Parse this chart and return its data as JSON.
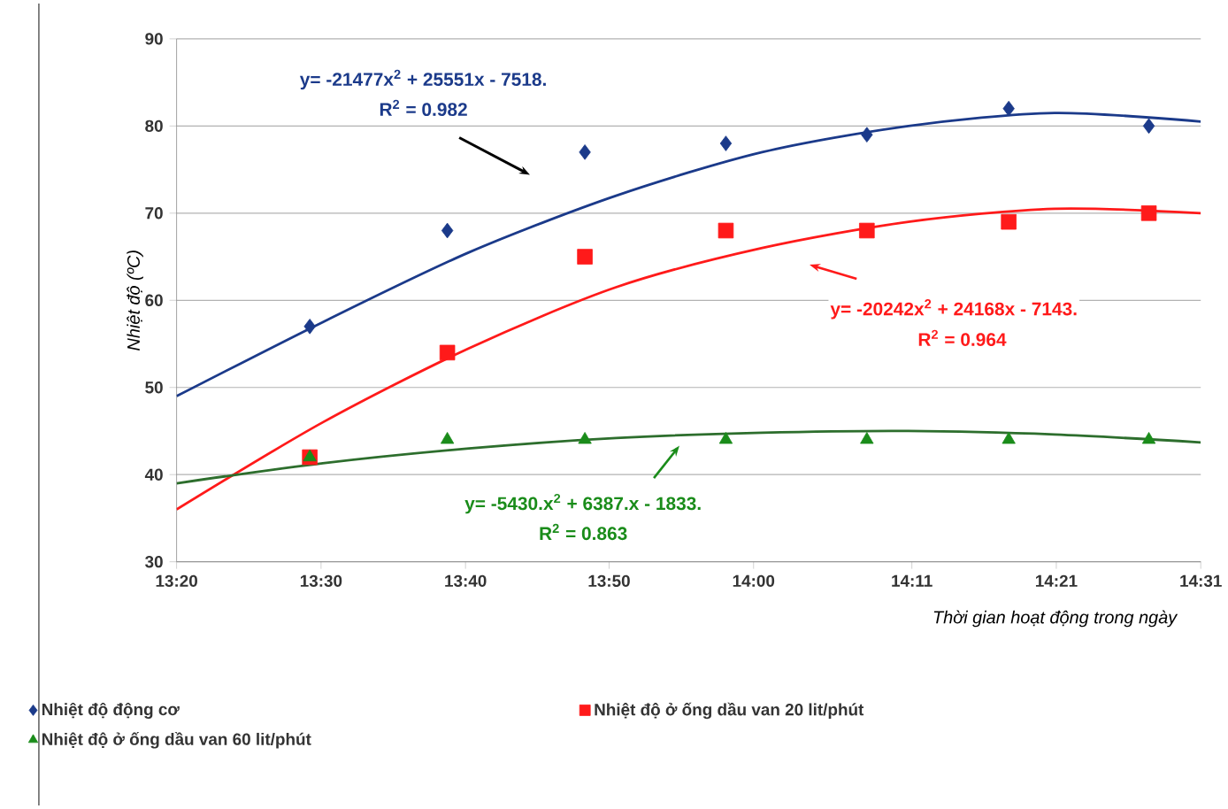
{
  "chart_data": {
    "type": "scatter",
    "xlabel": "Thời gian hoạt động trong ngày",
    "ylabel": "Nhiệt độ (ºC)",
    "x": [
      13.487,
      13.646,
      13.805,
      13.968,
      14.131,
      14.295,
      14.457
    ],
    "series": [
      {
        "name": "Nhiệt độ động cơ",
        "color": "#1b3a8a",
        "marker": "diamond",
        "values": [
          57,
          68,
          77,
          78,
          79,
          82,
          80
        ]
      },
      {
        "name": "Nhiệt độ ở ống dầu van 20 lit/phút",
        "color": "#ff1a1a",
        "marker": "square",
        "values": [
          42,
          54,
          65,
          68,
          68,
          69,
          70
        ]
      },
      {
        "name": "Nhiệt độ ở ống dầu van 60 lit/phút",
        "color": "#1a8c1a",
        "marker": "triangle",
        "values": [
          42,
          44,
          44,
          44,
          44,
          44,
          44
        ]
      },
      {
        "type": "line",
        "color": "#1b3a8a",
        "x": [
          13.333,
          13.502,
          13.671,
          13.841,
          14.01,
          14.179,
          14.348,
          14.517
        ],
        "values": [
          49,
          57.5,
          65.5,
          72,
          77,
          80,
          81.5,
          80.5
        ]
      },
      {
        "type": "line",
        "color": "#ff1a1a",
        "x": [
          13.333,
          13.502,
          13.671,
          13.841,
          14.01,
          14.179,
          14.348,
          14.517
        ],
        "values": [
          36,
          46,
          54.5,
          61.5,
          66,
          69,
          70.5,
          70
        ]
      },
      {
        "type": "line",
        "color": "#2d6e2d",
        "x": [
          13.333,
          13.502,
          13.671,
          13.841,
          14.01,
          14.179,
          14.348,
          14.517
        ],
        "values": [
          39,
          41.3,
          43,
          44.2,
          44.8,
          45,
          44.6,
          43.7
        ]
      }
    ],
    "xlim": [
      13.333,
      14.517
    ],
    "xticks": [
      {
        "value": 13.333,
        "label": "13:20"
      },
      {
        "value": 13.5,
        "label": "13:30"
      },
      {
        "value": 13.667,
        "label": "13:40"
      },
      {
        "value": 13.833,
        "label": "13:50"
      },
      {
        "value": 14.0,
        "label": "14:00"
      },
      {
        "value": 14.183,
        "label": "14:11"
      },
      {
        "value": 14.35,
        "label": "14:21"
      },
      {
        "value": 14.517,
        "label": "14:31"
      }
    ],
    "ylim": [
      30,
      90
    ],
    "yticks": [
      30,
      40,
      50,
      60,
      70,
      80,
      90
    ],
    "grid": "y",
    "legend": "bottom",
    "annotations": [
      "y= -21477x$^{2}$ + 25551x - 7518.",
      "R$^{2}$ = 0.982",
      "y= -20242x$^{2}$ + 24168x - 7143.",
      "R$^{2}$ = 0.964",
      "y= -5430.x$^{2}$ + 6387.x - 1833.",
      "R$^{2}$ = 0.863"
    ]
  }
}
